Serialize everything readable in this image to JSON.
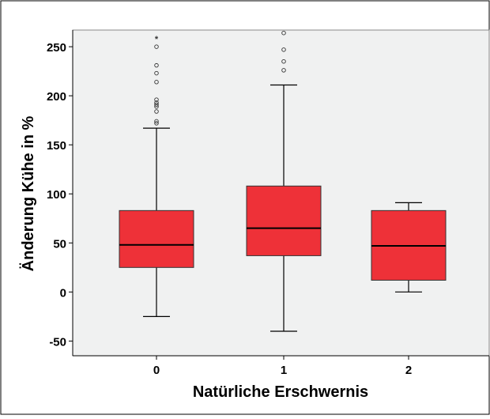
{
  "chart_data": {
    "type": "box",
    "title": "",
    "xlabel": "Natürliche Erschwernis",
    "ylabel": "Änderung Kühe in %",
    "ylim": [
      -65,
      267
    ],
    "yticks": [
      -50,
      0,
      50,
      100,
      150,
      200,
      250
    ],
    "categories": [
      "0",
      "1",
      "2"
    ],
    "boxes": [
      {
        "category": "0",
        "whisker_low": -25,
        "q1": 25,
        "median": 48,
        "q3": 83,
        "whisker_high": 167,
        "outliers": [
          172,
          174,
          184,
          189,
          191,
          193,
          196,
          214,
          223,
          231,
          250
        ],
        "extremes": [
          259
        ]
      },
      {
        "category": "1",
        "whisker_low": -40,
        "q1": 37,
        "median": 65,
        "q3": 108,
        "whisker_high": 211,
        "outliers": [
          226,
          235,
          247,
          264
        ],
        "extremes": []
      },
      {
        "category": "2",
        "whisker_low": 0,
        "q1": 12,
        "median": 47,
        "q3": 83,
        "whisker_high": 91,
        "outliers": [],
        "extremes": []
      }
    ],
    "grid": false,
    "legend": "none",
    "colors": {
      "box_fill": "#ee3138",
      "plot_background": "#f0f1f1",
      "outline": "#000000"
    }
  }
}
